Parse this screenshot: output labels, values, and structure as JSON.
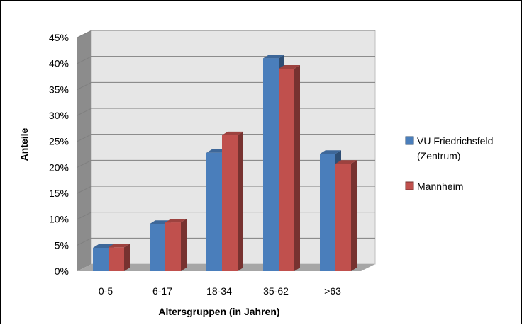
{
  "chart_data": {
    "type": "bar",
    "categories": [
      "0-5",
      "6-17",
      "18-34",
      "35-62",
      ">63"
    ],
    "series": [
      {
        "name": "VU Friedrichsfeld (Zentrum)",
        "legend_lines": [
          "VU Friedrichsfeld",
          "(Zentrum)"
        ],
        "color": "#4a7ebb",
        "values": [
          0.045,
          0.091,
          0.228,
          0.41,
          0.226
        ]
      },
      {
        "name": "Mannheim",
        "legend_lines": [
          "Mannheim"
        ],
        "color": "#c0504d",
        "values": [
          0.046,
          0.094,
          0.262,
          0.39,
          0.207
        ]
      }
    ],
    "xlabel": "Altersgruppen (in Jahren)",
    "ylabel": "Anteile",
    "ylim": [
      0,
      0.45
    ],
    "yticks": [
      "0%",
      "5%",
      "10%",
      "15%",
      "20%",
      "25%",
      "30%",
      "35%",
      "40%",
      "45%"
    ],
    "grid": true,
    "legend_position": "right"
  }
}
